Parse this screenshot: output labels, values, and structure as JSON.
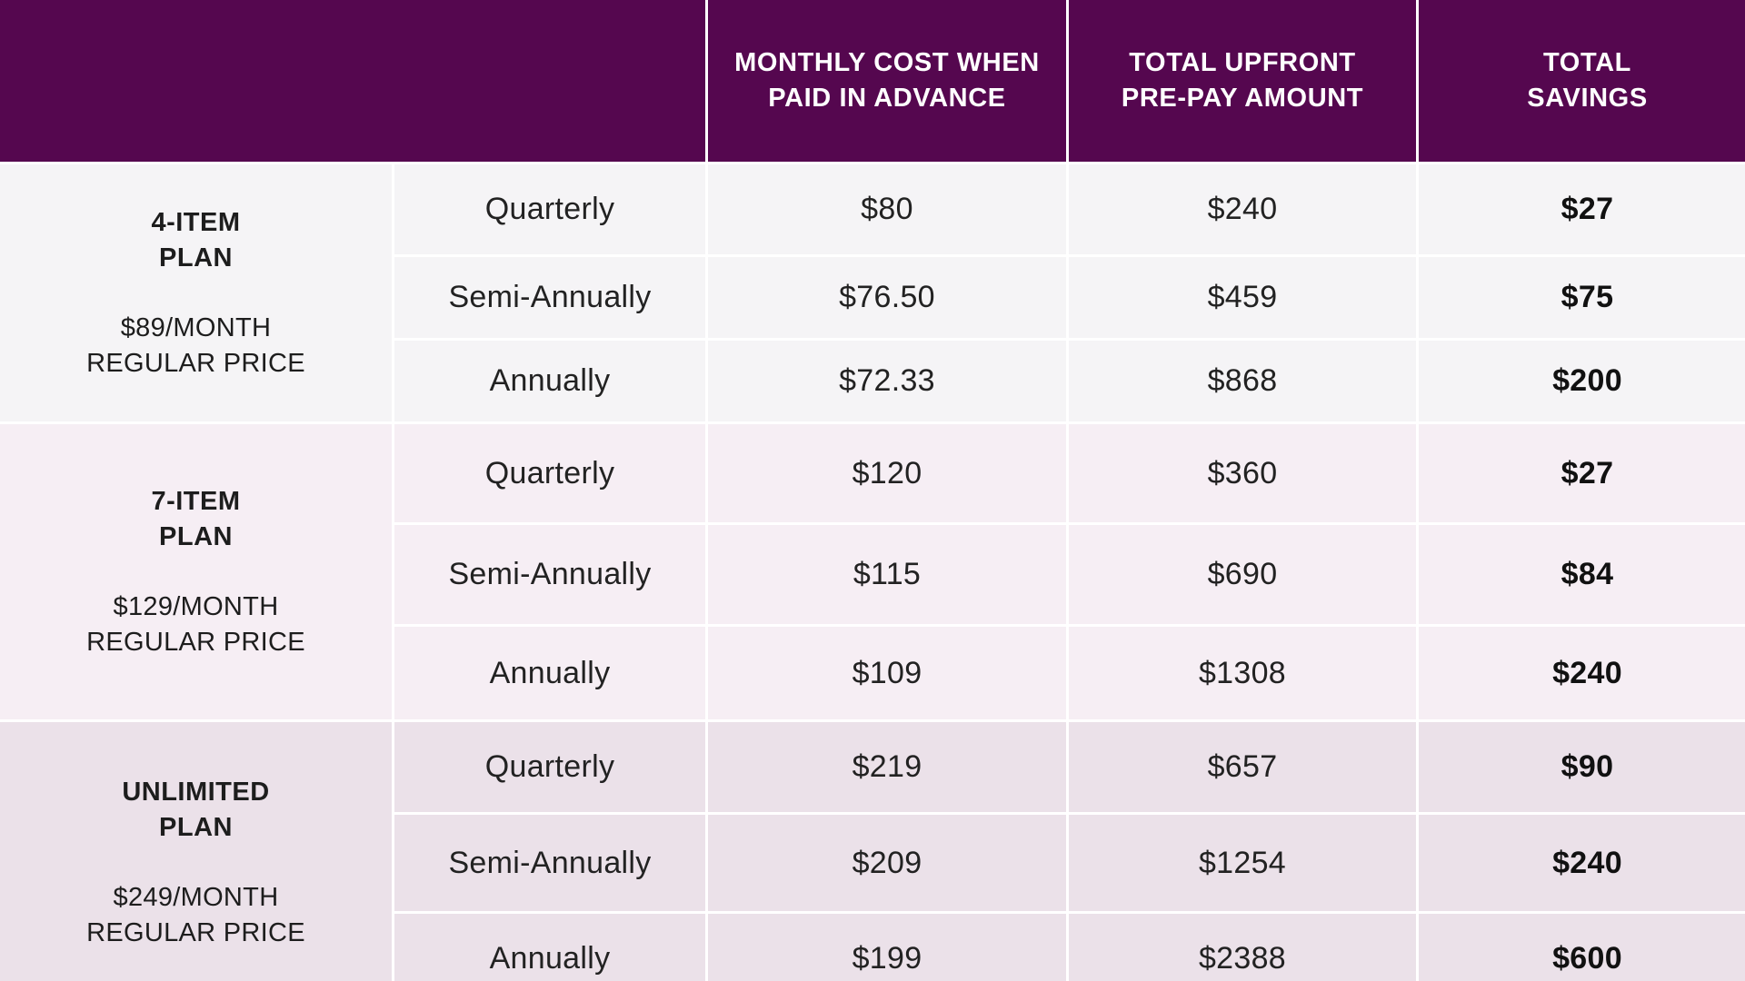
{
  "header": {
    "empty": "",
    "col_monthly": "MONTHLY COST WHEN\nPAID IN ADVANCE",
    "col_upfront": "TOTAL UPFRONT\nPRE-PAY AMOUNT",
    "col_savings": "TOTAL\nSAVINGS"
  },
  "colors": {
    "header_bg": "#55074f",
    "group1_bg": "#f5f4f6",
    "group2_bg": "#f6eef4",
    "group3_bg": "#ebe1e9"
  },
  "plans": [
    {
      "name": "4-ITEM\nPLAN",
      "price": "$89/MONTH\nREGULAR PRICE",
      "rows": [
        {
          "term": "Quarterly",
          "monthly": "$80",
          "upfront": "$240",
          "savings": "$27"
        },
        {
          "term": "Semi-Annually",
          "monthly": "$76.50",
          "upfront": "$459",
          "savings": "$75"
        },
        {
          "term": "Annually",
          "monthly": "$72.33",
          "upfront": "$868",
          "savings": "$200"
        }
      ]
    },
    {
      "name": "7-ITEM\nPLAN",
      "price": "$129/MONTH\nREGULAR PRICE",
      "rows": [
        {
          "term": "Quarterly",
          "monthly": "$120",
          "upfront": "$360",
          "savings": "$27"
        },
        {
          "term": "Semi-Annually",
          "monthly": "$115",
          "upfront": "$690",
          "savings": "$84"
        },
        {
          "term": "Annually",
          "monthly": "$109",
          "upfront": "$1308",
          "savings": "$240"
        }
      ]
    },
    {
      "name": "UNLIMITED\nPLAN",
      "price": "$249/MONTH\nREGULAR PRICE",
      "rows": [
        {
          "term": "Quarterly",
          "monthly": "$219",
          "upfront": "$657",
          "savings": "$90"
        },
        {
          "term": "Semi-Annually",
          "monthly": "$209",
          "upfront": "$1254",
          "savings": "$240"
        },
        {
          "term": "Annually",
          "monthly": "$199",
          "upfront": "$2388",
          "savings": "$600"
        }
      ]
    }
  ]
}
